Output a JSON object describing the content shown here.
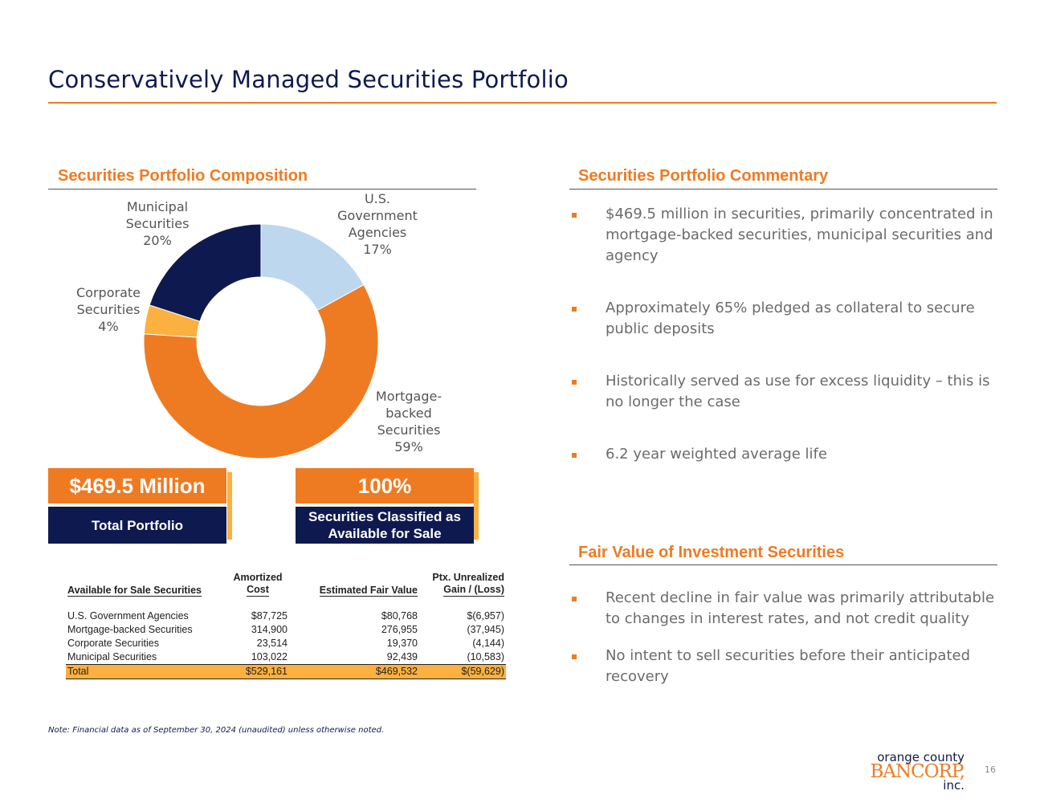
{
  "header": {
    "title": "Conservatively Managed Securities Portfolio"
  },
  "composition": {
    "heading": "Securities Portfolio Composition"
  },
  "chart_data": {
    "type": "pie",
    "donut": true,
    "categories": [
      "U.S. Government Agencies",
      "Mortgage-backed Securities",
      "Corporate Securities",
      "Municipal Securities"
    ],
    "values": [
      17,
      59,
      4,
      20
    ],
    "units": "%",
    "colors": [
      "#bdd7ee",
      "#ee7b22",
      "#fbb040",
      "#0e1a4f"
    ],
    "labels": [
      {
        "lines": [
          "U.S.",
          "Government",
          "Agencies",
          "17%"
        ]
      },
      {
        "lines": [
          "Mortgage-",
          "backed",
          "Securities",
          "59%"
        ]
      },
      {
        "lines": [
          "Corporate",
          "Securities",
          "4%"
        ]
      },
      {
        "lines": [
          "Municipal",
          "Securities",
          "20%"
        ]
      }
    ]
  },
  "stats": {
    "total_value": "$469.5 Million",
    "total_label": "Total Portfolio",
    "afs_value": "100%",
    "afs_label_line1": "Securities Classified as",
    "afs_label_line2": "Available for Sale"
  },
  "table": {
    "headers": {
      "category": "Available for Sale Securities",
      "amortized_line1": "Amortized",
      "amortized_line2": "Cost",
      "fair_value": "Estimated Fair Value",
      "unrealized_line1": "Ptx. Unrealized",
      "unrealized_line2": "Gain / (Loss)"
    },
    "rows": [
      {
        "name": "U.S. Government Agencies",
        "amortized": "$87,725",
        "fair": "$80,768",
        "gain": "$(6,957)"
      },
      {
        "name": "Mortgage-backed Securities",
        "amortized": "314,900",
        "fair": "276,955",
        "gain": "(37,945)"
      },
      {
        "name": "Corporate Securities",
        "amortized": "23,514",
        "fair": "19,370",
        "gain": "(4,144)"
      },
      {
        "name": "Municipal Securities",
        "amortized": "103,022",
        "fair": "92,439",
        "gain": "(10,583)"
      }
    ],
    "total": {
      "name": "Total",
      "amortized": "$529,161",
      "fair": "$469,532",
      "gain": "$(59,629)"
    }
  },
  "commentary": {
    "heading": "Securities Portfolio Commentary",
    "bullets": [
      "$469.5 million in securities, primarily concentrated in mortgage-backed securities, municipal securities and agency",
      "Approximately 65% pledged as collateral to secure public deposits",
      "Historically served as use for excess liquidity – this is no longer the case",
      "6.2 year weighted average life"
    ]
  },
  "fair_value": {
    "heading": "Fair Value of Investment Securities",
    "bullets": [
      "Recent decline in fair value was primarily attributable to changes in interest rates, and not credit quality",
      "No intent to sell securities before their anticipated recovery"
    ]
  },
  "footer": {
    "note": "Note: Financial data as of September 30, 2024 (unaudited) unless otherwise noted.",
    "page_number": "16",
    "logo_line1": "orange county",
    "logo_line2": "BANCORP,",
    "logo_line3": "inc."
  }
}
